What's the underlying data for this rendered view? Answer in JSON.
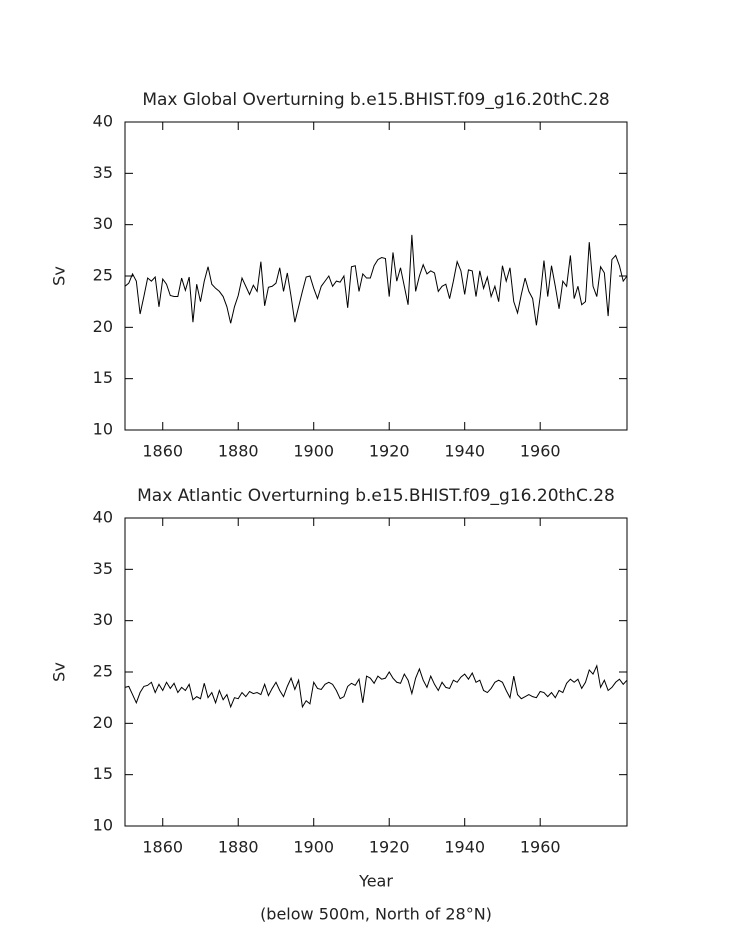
{
  "chart_data": [
    {
      "type": "line",
      "title": "Max Global Overturning b.e15.BHIST.f09_g16.20thC.28",
      "ylabel": "Sv",
      "x": [
        1850,
        1851,
        1852,
        1853,
        1854,
        1855,
        1856,
        1857,
        1858,
        1859,
        1860,
        1861,
        1862,
        1863,
        1864,
        1865,
        1866,
        1867,
        1868,
        1869,
        1870,
        1871,
        1872,
        1873,
        1874,
        1875,
        1876,
        1877,
        1878,
        1879,
        1880,
        1881,
        1882,
        1883,
        1884,
        1885,
        1886,
        1887,
        1888,
        1889,
        1890,
        1891,
        1892,
        1893,
        1894,
        1895,
        1896,
        1897,
        1898,
        1899,
        1900,
        1901,
        1902,
        1903,
        1904,
        1905,
        1906,
        1907,
        1908,
        1909,
        1910,
        1911,
        1912,
        1913,
        1914,
        1915,
        1916,
        1917,
        1918,
        1919,
        1920,
        1921,
        1922,
        1923,
        1924,
        1925,
        1926,
        1927,
        1928,
        1929,
        1930,
        1931,
        1932,
        1933,
        1934,
        1935,
        1936,
        1937,
        1938,
        1939,
        1940,
        1941,
        1942,
        1943,
        1944,
        1945,
        1946,
        1947,
        1948,
        1949,
        1950,
        1951,
        1952,
        1953,
        1954,
        1955,
        1956,
        1957,
        1958,
        1959,
        1960,
        1961,
        1962,
        1963,
        1964,
        1965,
        1966,
        1967,
        1968,
        1969,
        1970,
        1971,
        1972,
        1973,
        1974,
        1975,
        1976,
        1977,
        1978,
        1979,
        1980,
        1981,
        1982,
        1983
      ],
      "series": [
        {
          "color": "#000000",
          "values": [
            24.0,
            24.3,
            25.2,
            24.5,
            21.3,
            23.0,
            24.8,
            24.5,
            24.9,
            22.0,
            24.7,
            24.2,
            23.1,
            23.0,
            23.0,
            24.8,
            23.6,
            24.9,
            20.5,
            24.2,
            22.5,
            24.5,
            25.9,
            24.2,
            23.8,
            23.5,
            23.0,
            22.0,
            20.4,
            22.0,
            23.1,
            24.8,
            24.0,
            23.2,
            24.1,
            23.5,
            26.4,
            22.1,
            23.9,
            24.0,
            24.3,
            25.8,
            23.5,
            25.3,
            23.0,
            20.5,
            22.0,
            23.5,
            24.9,
            25.0,
            23.8,
            22.8,
            24.0,
            24.5,
            25.0,
            24.0,
            24.5,
            24.4,
            25.0,
            21.9,
            25.9,
            26.0,
            23.5,
            25.2,
            24.8,
            24.8,
            26.0,
            26.6,
            26.8,
            26.7,
            23.0,
            27.3,
            24.5,
            25.8,
            24.0,
            22.2,
            29.0,
            23.5,
            25.0,
            26.1,
            25.2,
            25.5,
            25.3,
            23.5,
            24.0,
            24.2,
            22.8,
            24.5,
            26.4,
            25.5,
            23.2,
            25.6,
            25.5,
            23.0,
            25.5,
            23.8,
            24.9,
            23.0,
            24.0,
            22.5,
            26.0,
            24.5,
            25.8,
            22.5,
            21.4,
            23.2,
            24.8,
            23.5,
            22.8,
            20.2,
            23.0,
            26.5,
            23.0,
            26.0,
            24.0,
            21.8,
            24.5,
            24.0,
            27.0,
            22.8,
            24.0,
            22.2,
            22.5,
            28.3,
            24.0,
            23.0,
            25.9,
            25.3,
            21.1,
            26.6,
            27.0,
            26.0,
            24.5,
            25.0
          ]
        }
      ],
      "xlim": [
        1850,
        1983
      ],
      "xticks": [
        1860,
        1880,
        1900,
        1920,
        1940,
        1960
      ],
      "ylim": [
        10,
        40
      ],
      "yticks": [
        10,
        15,
        20,
        25,
        30,
        35,
        40
      ]
    },
    {
      "type": "line",
      "title": "Max Atlantic Overturning b.e15.BHIST.f09_g16.20thC.28",
      "ylabel": "Sv",
      "xlabel": "Year",
      "note": "(below 500m, North of 28°N)",
      "x": [
        1850,
        1851,
        1852,
        1853,
        1854,
        1855,
        1856,
        1857,
        1858,
        1859,
        1860,
        1861,
        1862,
        1863,
        1864,
        1865,
        1866,
        1867,
        1868,
        1869,
        1870,
        1871,
        1872,
        1873,
        1874,
        1875,
        1876,
        1877,
        1878,
        1879,
        1880,
        1881,
        1882,
        1883,
        1884,
        1885,
        1886,
        1887,
        1888,
        1889,
        1890,
        1891,
        1892,
        1893,
        1894,
        1895,
        1896,
        1897,
        1898,
        1899,
        1900,
        1901,
        1902,
        1903,
        1904,
        1905,
        1906,
        1907,
        1908,
        1909,
        1910,
        1911,
        1912,
        1913,
        1914,
        1915,
        1916,
        1917,
        1918,
        1919,
        1920,
        1921,
        1922,
        1923,
        1924,
        1925,
        1926,
        1927,
        1928,
        1929,
        1930,
        1931,
        1932,
        1933,
        1934,
        1935,
        1936,
        1937,
        1938,
        1939,
        1940,
        1941,
        1942,
        1943,
        1944,
        1945,
        1946,
        1947,
        1948,
        1949,
        1950,
        1951,
        1952,
        1953,
        1954,
        1955,
        1956,
        1957,
        1958,
        1959,
        1960,
        1961,
        1962,
        1963,
        1964,
        1965,
        1966,
        1967,
        1968,
        1969,
        1970,
        1971,
        1972,
        1973,
        1974,
        1975,
        1976,
        1977,
        1978,
        1979,
        1980,
        1981,
        1982,
        1983
      ],
      "series": [
        {
          "color": "#000000",
          "values": [
            23.5,
            23.6,
            22.8,
            22.0,
            23.0,
            23.6,
            23.7,
            24.0,
            23.0,
            23.8,
            23.2,
            24.0,
            23.4,
            23.9,
            23.0,
            23.5,
            23.2,
            23.8,
            22.3,
            22.6,
            22.4,
            23.9,
            22.5,
            23.0,
            22.0,
            23.2,
            22.3,
            22.8,
            21.6,
            22.5,
            22.4,
            23.0,
            22.6,
            23.1,
            22.9,
            23.0,
            22.8,
            23.8,
            22.7,
            23.4,
            24.0,
            23.2,
            22.6,
            23.6,
            24.4,
            23.3,
            24.2,
            21.6,
            22.2,
            21.9,
            24.0,
            23.4,
            23.3,
            23.8,
            24.0,
            23.8,
            23.2,
            22.4,
            22.6,
            23.6,
            23.9,
            23.7,
            24.3,
            22.0,
            24.6,
            24.4,
            23.9,
            24.6,
            24.3,
            24.4,
            25.0,
            24.4,
            24.0,
            23.9,
            24.8,
            24.2,
            22.9,
            24.4,
            25.3,
            24.2,
            23.5,
            24.6,
            23.8,
            23.2,
            24.0,
            23.5,
            23.4,
            24.2,
            24.0,
            24.5,
            24.8,
            24.3,
            24.9,
            24.0,
            24.2,
            23.2,
            23.0,
            23.4,
            24.0,
            24.2,
            24.0,
            23.2,
            22.5,
            24.6,
            22.8,
            22.4,
            22.6,
            22.8,
            22.6,
            22.5,
            23.1,
            23.0,
            22.6,
            23.0,
            22.5,
            23.2,
            23.0,
            23.9,
            24.3,
            24.0,
            24.3,
            23.4,
            24.0,
            25.2,
            24.8,
            25.6,
            23.5,
            24.2,
            23.2,
            23.5,
            24.0,
            24.3,
            23.8,
            24.2
          ]
        }
      ],
      "xlim": [
        1850,
        1983
      ],
      "xticks": [
        1860,
        1880,
        1900,
        1920,
        1940,
        1960
      ],
      "ylim": [
        10,
        40
      ],
      "yticks": [
        10,
        15,
        20,
        25,
        30,
        35,
        40
      ]
    }
  ]
}
